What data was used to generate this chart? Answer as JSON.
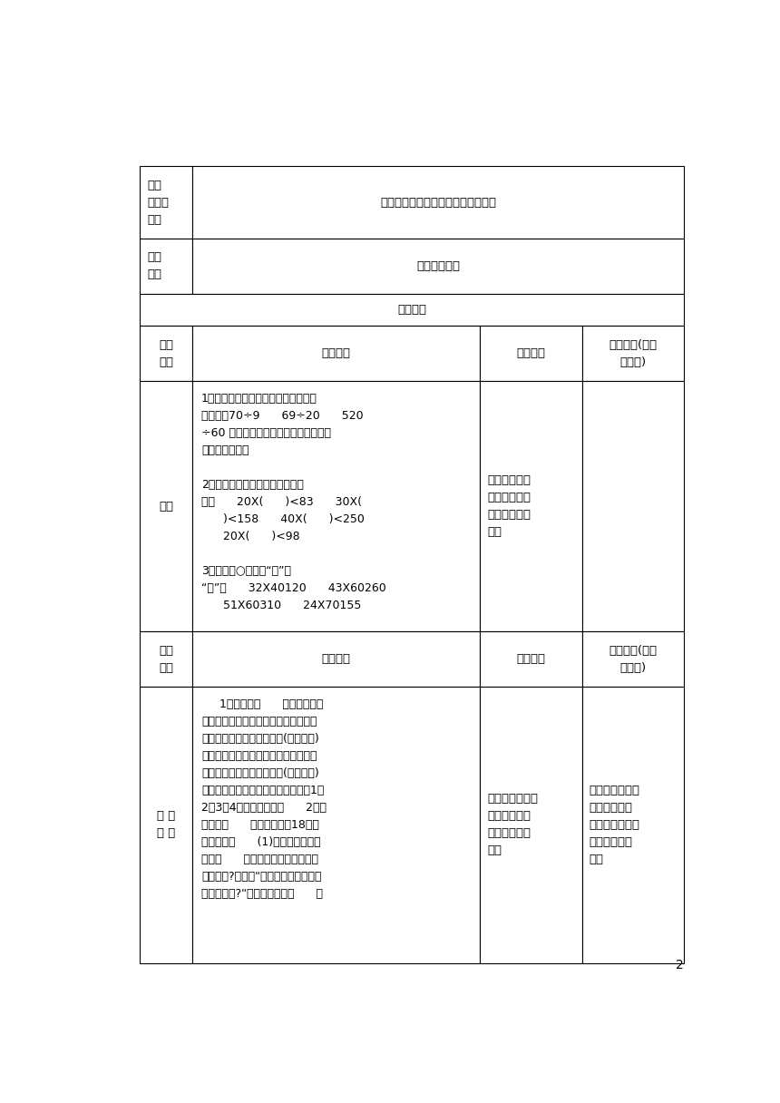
{
  "bg_color": "#ffffff",
  "border_color": "#000000",
  "text_color": "#000000",
  "page_number": "2",
  "col2_row5": "1．指名板演，其余学生在自己练习本\n上计算　70÷9      69÷20      520\n÷60 集体订正后，让学生说一说用整十\n数除怎样试商。\n\n2．口答：下面的括号里最大能填\n几？      20X(      )<83      30X(\n      )<158      40X(      )<250\n      20X(      )<98\n\n3．在下面○里填上“＞”或\n“＜”。      32X40120      43X60260\n      51X60310      24X70155",
  "col3_row5": "在学生独立解\n题的过程中教\n师巡视了解学\n情。",
  "col2_row7": "     1．引入新课      师：前面我们\n学习了用整十数除三位数的笔算除法和\n非整十数的两位数除三位数(不要调商)\n的笔算除法，这节课我们继续学习三位\n数除以两位数的笔算除法。(板书课题)\n本节课，我们先来学习除数的个位是1、\n2、3、4的两位数除法。      2．教\n学例题。      出示教科书第18页教\n学情境图。      (1)提出问题，引出\n算式。      提问：看了这幅图，你知\n道了什么?要知道\"四年级一班平均每人\n借书多少本?\"可以怎样列式？      指",
  "col3_row7": "学生回忆知识，\n根据回忆自由\n发言，整理总\n结。",
  "col4_row7": "通过讨论交流，\n梳理本学期的\n知识点，为后续\n的学习做好准\n备。"
}
